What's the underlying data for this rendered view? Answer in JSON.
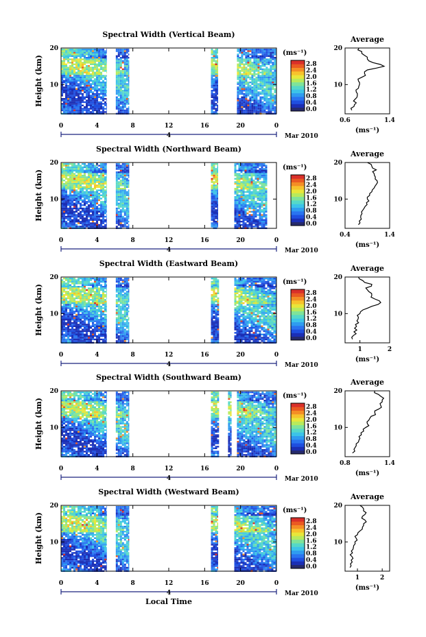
{
  "chart_data": [
    {
      "type": "heatmap",
      "title": "Spectral Width (Vertical Beam)",
      "beam": "vertical",
      "ylabel": "Height (km)",
      "ylim": [
        2,
        20
      ],
      "y_ticks": [
        "20",
        "10"
      ],
      "xlim": [
        0,
        24
      ],
      "x_ticks": [
        "0",
        "4",
        "8",
        "12",
        "16",
        "20",
        "0"
      ],
      "date_tick": "4",
      "date_label": "Mar 2010",
      "data_segments_hours": [
        [
          0,
          5.1
        ],
        [
          6.1,
          7.6
        ],
        [
          16.7,
          17.5
        ],
        [
          19.6,
          24
        ]
      ],
      "colorbar": {
        "unit": "(ms⁻¹)",
        "ticks": [
          "2.8",
          "2.4",
          "2.0",
          "1.6",
          "1.2",
          "0.8",
          "0.4",
          "0.0"
        ]
      },
      "average_profile": {
        "title": "Average",
        "xlabel": "(ms⁻¹)",
        "xlim": [
          0.6,
          1.4
        ],
        "x_ticks": [
          "0.6",
          "1.4"
        ],
        "y_ticks": [
          "20",
          "10"
        ],
        "heights_km": [
          3,
          4,
          5,
          6,
          7,
          8,
          9,
          10,
          11,
          12,
          13,
          14,
          15,
          16,
          17,
          18,
          19,
          20
        ],
        "values": [
          0.72,
          0.76,
          0.8,
          0.78,
          0.82,
          0.8,
          0.84,
          0.86,
          0.84,
          0.9,
          0.95,
          1.0,
          1.3,
          1.1,
          1.0,
          0.95,
          0.9,
          0.85
        ]
      }
    },
    {
      "type": "heatmap",
      "title": "Spectral Width (Northward Beam)",
      "beam": "northward",
      "ylabel": "Height (km)",
      "ylim": [
        2,
        20
      ],
      "y_ticks": [
        "20",
        "10"
      ],
      "xlim": [
        0,
        24
      ],
      "x_ticks": [
        "0",
        "4",
        "8",
        "12",
        "16",
        "20",
        "0"
      ],
      "date_tick": "4",
      "date_label": "Mar 2010",
      "data_segments_hours": [
        [
          0,
          5.1
        ],
        [
          6.1,
          7.6
        ],
        [
          16.7,
          17.5
        ],
        [
          19.3,
          23.0
        ]
      ],
      "colorbar": {
        "unit": "(ms⁻¹)",
        "ticks": [
          "2.8",
          "2.4",
          "2.0",
          "1.6",
          "1.2",
          "0.8",
          "0.4",
          "0.0"
        ]
      },
      "average_profile": {
        "title": "Average",
        "xlabel": "(ms⁻¹)",
        "xlim": [
          0.4,
          1.4
        ],
        "x_ticks": [
          "0.4",
          "1.4"
        ],
        "y_ticks": [
          "20",
          "10"
        ],
        "heights_km": [
          3,
          4,
          5,
          6,
          7,
          8,
          9,
          10,
          11,
          12,
          13,
          14,
          15,
          16,
          17,
          18,
          19,
          20
        ],
        "values": [
          0.7,
          0.72,
          0.75,
          0.78,
          0.8,
          0.85,
          0.88,
          0.9,
          0.95,
          1.0,
          1.05,
          1.1,
          1.12,
          1.08,
          1.05,
          1.1,
          1.0,
          0.9
        ]
      }
    },
    {
      "type": "heatmap",
      "title": "Spectral Width (Eastward Beam)",
      "beam": "eastward",
      "ylabel": "Height (km)",
      "ylim": [
        2,
        20
      ],
      "y_ticks": [
        "20",
        "10"
      ],
      "xlim": [
        0,
        24
      ],
      "x_ticks": [
        "0",
        "4",
        "8",
        "12",
        "16",
        "20",
        "0"
      ],
      "date_tick": "4",
      "date_label": "Mar 2010",
      "data_segments_hours": [
        [
          0,
          5.1
        ],
        [
          6.1,
          7.6
        ],
        [
          16.7,
          17.6
        ],
        [
          19.3,
          24
        ]
      ],
      "colorbar": {
        "unit": "(ms⁻¹)",
        "ticks": [
          "2.8",
          "2.4",
          "2.0",
          "1.6",
          "1.2",
          "0.8",
          "0.4",
          "0.0"
        ]
      },
      "average_profile": {
        "title": "Average",
        "xlabel": "(ms⁻¹)",
        "xlim": [
          0.5,
          2.0
        ],
        "x_ticks": [
          "1",
          "2"
        ],
        "y_ticks": [
          "20",
          "10"
        ],
        "heights_km": [
          3,
          4,
          5,
          6,
          7,
          8,
          9,
          10,
          11,
          12,
          13,
          14,
          15,
          16,
          17,
          18,
          19,
          20
        ],
        "values": [
          0.75,
          0.78,
          0.8,
          0.82,
          0.85,
          0.9,
          0.95,
          1.0,
          1.1,
          1.4,
          1.7,
          1.5,
          1.4,
          1.3,
          1.2,
          1.4,
          1.1,
          0.95
        ]
      }
    },
    {
      "type": "heatmap",
      "title": "Spectral Width (Southward Beam)",
      "beam": "southward",
      "ylabel": "Height (km)",
      "ylim": [
        2,
        20
      ],
      "y_ticks": [
        "20",
        "10"
      ],
      "xlim": [
        0,
        24
      ],
      "x_ticks": [
        "0",
        "4",
        "8",
        "12",
        "16",
        "20",
        "0"
      ],
      "date_tick": "4",
      "date_label": "Mar 2010",
      "data_segments_hours": [
        [
          0,
          5.1
        ],
        [
          6.1,
          7.6
        ],
        [
          16.7,
          17.6
        ],
        [
          18.6,
          19.0
        ],
        [
          19.6,
          24
        ]
      ],
      "colorbar": {
        "unit": "(ms⁻¹)",
        "ticks": [
          "2.8",
          "2.4",
          "2.0",
          "1.6",
          "1.2",
          "0.8",
          "0.4",
          "0.0"
        ]
      },
      "average_profile": {
        "title": "Average",
        "xlabel": "(ms⁻¹)",
        "xlim": [
          0.8,
          1.4
        ],
        "x_ticks": [
          "0.8",
          "1.4"
        ],
        "y_ticks": [
          "20",
          "10"
        ],
        "heights_km": [
          3,
          4,
          5,
          6,
          7,
          8,
          9,
          10,
          11,
          12,
          13,
          14,
          15,
          16,
          17,
          18,
          19,
          20
        ],
        "values": [
          0.9,
          0.92,
          0.95,
          0.98,
          1.0,
          1.02,
          1.05,
          1.08,
          1.1,
          1.12,
          1.15,
          1.2,
          1.25,
          1.28,
          1.3,
          1.32,
          1.25,
          1.2
        ]
      }
    },
    {
      "type": "heatmap",
      "title": "Spectral Width (Westward Beam)",
      "beam": "westward",
      "ylabel": "Height (km)",
      "ylim": [
        2,
        20
      ],
      "y_ticks": [
        "20",
        "10"
      ],
      "xlim": [
        0,
        24
      ],
      "x_ticks": [
        "0",
        "4",
        "8",
        "12",
        "16",
        "20",
        "0"
      ],
      "date_tick": "4",
      "date_label": "Mar 2010",
      "xlabel": "Local Time",
      "data_segments_hours": [
        [
          0,
          5.1
        ],
        [
          6.1,
          7.6
        ],
        [
          16.7,
          17.5
        ],
        [
          19.3,
          24
        ]
      ],
      "colorbar": {
        "unit": "(ms⁻¹)",
        "ticks": [
          "2.8",
          "2.4",
          "2.0",
          "1.6",
          "1.2",
          "0.8",
          "0.4",
          "0.0"
        ]
      },
      "average_profile": {
        "title": "Average",
        "xlabel": "(ms⁻¹)",
        "xlim": [
          0.5,
          2.3
        ],
        "x_ticks": [
          "1",
          "2"
        ],
        "y_ticks": [
          "20",
          "10"
        ],
        "heights_km": [
          3,
          4,
          5,
          6,
          7,
          8,
          9,
          10,
          11,
          12,
          13,
          14,
          15,
          16,
          17,
          18,
          19,
          20
        ],
        "values": [
          0.7,
          0.72,
          0.75,
          0.78,
          0.8,
          0.82,
          0.85,
          0.9,
          0.95,
          1.0,
          1.1,
          1.2,
          1.25,
          1.3,
          1.2,
          1.35,
          1.25,
          1.1
        ]
      }
    }
  ]
}
